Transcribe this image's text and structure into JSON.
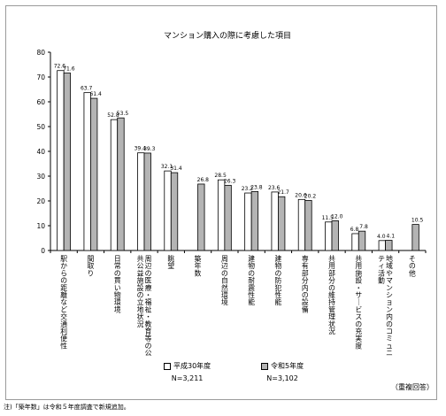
{
  "chart_data": {
    "type": "bar",
    "title": "マンション購入の際に考慮した項目",
    "ylim": [
      0,
      80
    ],
    "yticks": [
      0,
      10,
      20,
      30,
      40,
      50,
      60,
      70,
      80
    ],
    "categories": [
      "駅からの距離など交通利便性",
      "間取り",
      "日常の買い物環境",
      "周辺の医療・福祉・教育等の公共公益施設の立地状況",
      "眺望",
      "築年数",
      "周辺の自然環境",
      "建物の耐震性能",
      "建物の防犯性能",
      "専有部分内の設備",
      "共用部分の維持管理状況",
      "共用施設・サービスの充実度",
      "地域やマンション内のコミュニティ活動",
      "その他"
    ],
    "series": [
      {
        "name": "平成30年度",
        "n": "N=3,211",
        "values": [
          72.6,
          63.7,
          52.8,
          39.4,
          32.1,
          null,
          28.5,
          23.2,
          23.6,
          20.6,
          11.5,
          6.8,
          4.0,
          null
        ],
        "labels": [
          "72.6",
          "63.7",
          "52.8",
          "39.4",
          "32.1",
          "",
          "28.5",
          "23.2",
          "23.6",
          "20.6",
          "11.5",
          "6.8",
          "4.0",
          ""
        ]
      },
      {
        "name": "令和5年度",
        "n": "N=3,102",
        "values": [
          71.6,
          61.4,
          53.5,
          39.3,
          31.4,
          26.8,
          26.3,
          23.8,
          21.7,
          20.2,
          12.0,
          7.8,
          4.1,
          10.5
        ],
        "labels": [
          "71.6",
          "61.4",
          "53.5",
          "39.3",
          "31.4",
          "26.8",
          "26.3",
          "23.8",
          "21.7",
          "20.2",
          "12.0",
          "7.8",
          "4.1",
          "10.5"
        ]
      }
    ],
    "colors": {
      "series1": "#ffffff",
      "series2": "#b4b4b4",
      "stroke": "#000000",
      "grid": "#000000"
    }
  },
  "note": "（重複回答）",
  "footnote": "注)「築年数」は令和５年度調査で新規追加。"
}
